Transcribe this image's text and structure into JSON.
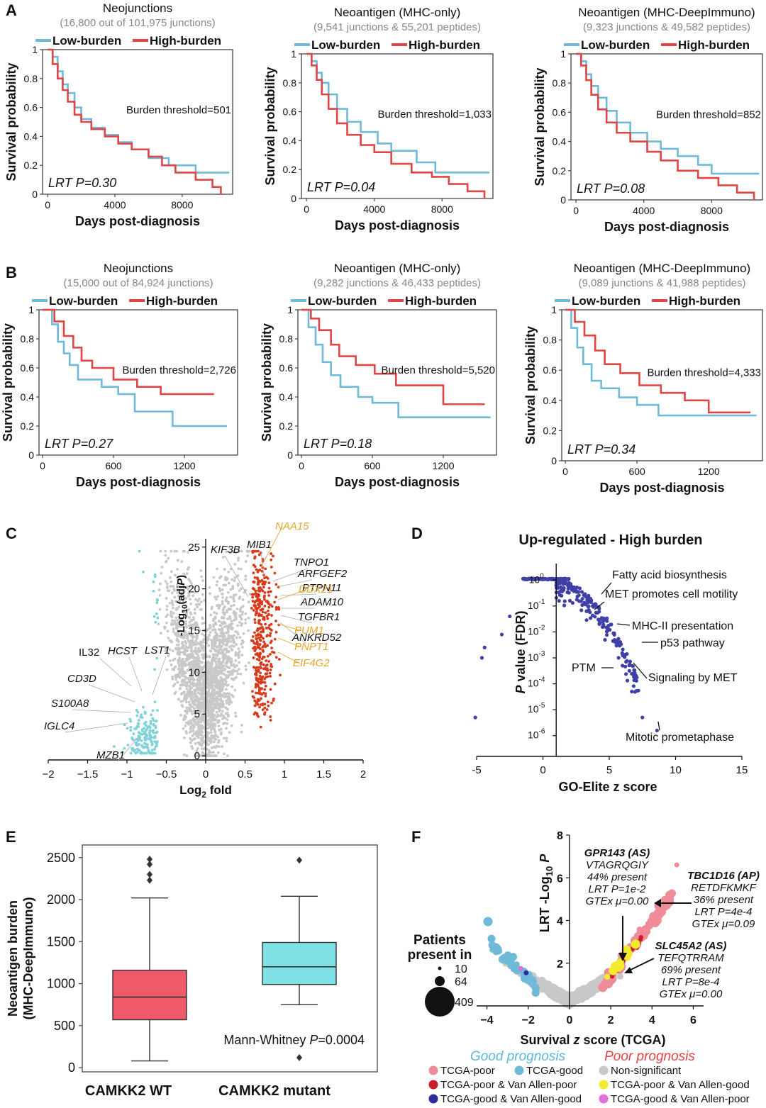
{
  "colors": {
    "low": "#6fbad8",
    "high": "#e04545",
    "gray": "#c8c8c8",
    "cyan": "#7fd3d8",
    "red": "#d83a1c",
    "orange": "#e8a52c",
    "blue": "#3f3fa8",
    "box_wt": "#ef5a6a",
    "box_mut": "#7fe0e6",
    "pink": "#ee8c9a",
    "yellow": "#f2ea2c",
    "violet": "#e06fe0"
  },
  "labels": {
    "A": "A",
    "B": "B",
    "C": "C",
    "D": "D",
    "E": "E",
    "F": "F",
    "km_xlabel": "Days post-diagnosis",
    "km_ylabel": "Survival probability",
    "legend_low": "Low-burden",
    "legend_high": "High-burden"
  },
  "chart_data": [
    {
      "id": "A1",
      "type": "line",
      "title": "Neojunctions",
      "subtitle": "(16,800 out of 101,975 junctions)",
      "annotation": "Burden threshold=501",
      "pvalue": "LRT P=0.30",
      "xlim": [
        -300,
        11000
      ],
      "ylim": [
        0,
        1
      ],
      "xticks": [
        0,
        4000,
        8000
      ],
      "yticks": [
        0.0,
        0.2,
        0.4,
        0.6,
        0.8,
        1.0
      ],
      "series": [
        {
          "name": "Low-burden",
          "steps": [
            [
              0,
              1.0
            ],
            [
              300,
              0.95
            ],
            [
              600,
              0.85
            ],
            [
              900,
              0.76
            ],
            [
              1200,
              0.7
            ],
            [
              1600,
              0.6
            ],
            [
              2000,
              0.52
            ],
            [
              2600,
              0.46
            ],
            [
              3400,
              0.41
            ],
            [
              4200,
              0.36
            ],
            [
              5000,
              0.31
            ],
            [
              6000,
              0.25
            ],
            [
              7200,
              0.2
            ],
            [
              8000,
              0.2
            ],
            [
              8800,
              0.15
            ],
            [
              10800,
              0.15
            ]
          ]
        },
        {
          "name": "High-burden",
          "steps": [
            [
              0,
              1.0
            ],
            [
              300,
              0.9
            ],
            [
              600,
              0.8
            ],
            [
              900,
              0.72
            ],
            [
              1200,
              0.64
            ],
            [
              1600,
              0.55
            ],
            [
              2000,
              0.5
            ],
            [
              2600,
              0.45
            ],
            [
              3400,
              0.4
            ],
            [
              4200,
              0.35
            ],
            [
              5000,
              0.31
            ],
            [
              6000,
              0.26
            ],
            [
              6800,
              0.2
            ],
            [
              7600,
              0.15
            ],
            [
              8800,
              0.1
            ],
            [
              9800,
              0.05
            ],
            [
              10300,
              0.0
            ]
          ]
        }
      ]
    },
    {
      "id": "A2",
      "type": "line",
      "title": "Neoantigen (MHC-only)",
      "subtitle": "(9,541 junctions & 55,201 peptides)",
      "annotation": "Burden threshold=1,033",
      "pvalue": "LRT P=0.04",
      "xlim": [
        -300,
        11000
      ],
      "ylim": [
        0,
        1
      ],
      "xticks": [
        0,
        4000,
        8000
      ],
      "yticks": [
        0.0,
        0.2,
        0.4,
        0.6,
        0.8,
        1.0
      ],
      "series": [
        {
          "name": "Low-burden",
          "steps": [
            [
              0,
              1.0
            ],
            [
              300,
              0.95
            ],
            [
              600,
              0.87
            ],
            [
              900,
              0.8
            ],
            [
              1300,
              0.72
            ],
            [
              1800,
              0.62
            ],
            [
              2400,
              0.53
            ],
            [
              3200,
              0.46
            ],
            [
              4200,
              0.38
            ],
            [
              5000,
              0.33
            ],
            [
              6500,
              0.25
            ],
            [
              7600,
              0.18
            ],
            [
              10800,
              0.18
            ]
          ]
        },
        {
          "name": "High-burden",
          "steps": [
            [
              0,
              1.0
            ],
            [
              300,
              0.92
            ],
            [
              600,
              0.82
            ],
            [
              900,
              0.72
            ],
            [
              1300,
              0.62
            ],
            [
              1800,
              0.52
            ],
            [
              2400,
              0.44
            ],
            [
              3200,
              0.37
            ],
            [
              4000,
              0.32
            ],
            [
              5000,
              0.24
            ],
            [
              6200,
              0.18
            ],
            [
              7400,
              0.15
            ],
            [
              8400,
              0.1
            ],
            [
              9500,
              0.05
            ],
            [
              10500,
              0.0
            ]
          ]
        }
      ]
    },
    {
      "id": "A3",
      "type": "line",
      "title": "Neoantigen (MHC-DeepImmuno)",
      "subtitle": "(9,323 junctions & 49,582 peptides)",
      "annotation": "Burden threshold=852",
      "pvalue": "LRT P=0.08",
      "xlim": [
        -300,
        11000
      ],
      "ylim": [
        0,
        1
      ],
      "xticks": [
        0,
        4000,
        8000
      ],
      "yticks": [
        0.0,
        0.2,
        0.4,
        0.6,
        0.8,
        1.0
      ],
      "series": [
        {
          "name": "Low-burden",
          "steps": [
            [
              0,
              1.0
            ],
            [
              300,
              0.95
            ],
            [
              600,
              0.86
            ],
            [
              900,
              0.78
            ],
            [
              1300,
              0.7
            ],
            [
              1800,
              0.61
            ],
            [
              2400,
              0.53
            ],
            [
              3200,
              0.46
            ],
            [
              4200,
              0.4
            ],
            [
              5000,
              0.35
            ],
            [
              6000,
              0.3
            ],
            [
              7200,
              0.24
            ],
            [
              8000,
              0.18
            ],
            [
              10800,
              0.18
            ]
          ]
        },
        {
          "name": "High-burden",
          "steps": [
            [
              0,
              1.0
            ],
            [
              300,
              0.92
            ],
            [
              600,
              0.82
            ],
            [
              900,
              0.72
            ],
            [
              1300,
              0.62
            ],
            [
              1800,
              0.53
            ],
            [
              2400,
              0.46
            ],
            [
              3200,
              0.4
            ],
            [
              4200,
              0.33
            ],
            [
              5000,
              0.27
            ],
            [
              6000,
              0.2
            ],
            [
              7200,
              0.15
            ],
            [
              8400,
              0.1
            ],
            [
              9500,
              0.05
            ],
            [
              10500,
              0.0
            ]
          ]
        }
      ]
    },
    {
      "id": "B1",
      "type": "line",
      "title": "Neojunctions",
      "subtitle": "(15,000 out of 84,924 junctions)",
      "annotation": "Burden threshold=2,726",
      "pvalue": "LRT P=0.27",
      "xlim": [
        -30,
        1650
      ],
      "ylim": [
        0,
        1
      ],
      "xticks": [
        0,
        600,
        1200
      ],
      "yticks": [
        0.0,
        0.2,
        0.4,
        0.6,
        0.8,
        1.0
      ],
      "series": [
        {
          "name": "Low-burden",
          "steps": [
            [
              0,
              1.0
            ],
            [
              80,
              0.9
            ],
            [
              130,
              0.78
            ],
            [
              180,
              0.7
            ],
            [
              230,
              0.62
            ],
            [
              300,
              0.52
            ],
            [
              500,
              0.47
            ],
            [
              640,
              0.42
            ],
            [
              780,
              0.3
            ],
            [
              1100,
              0.2
            ],
            [
              1560,
              0.2
            ]
          ]
        },
        {
          "name": "High-burden",
          "steps": [
            [
              0,
              1.0
            ],
            [
              100,
              0.92
            ],
            [
              180,
              0.82
            ],
            [
              260,
              0.74
            ],
            [
              330,
              0.65
            ],
            [
              420,
              0.6
            ],
            [
              600,
              0.52
            ],
            [
              800,
              0.47
            ],
            [
              1000,
              0.42
            ],
            [
              1450,
              0.42
            ]
          ]
        }
      ]
    },
    {
      "id": "B2",
      "type": "line",
      "title": "Neoantigen (MHC-only)",
      "subtitle": "(9,282 junctions & 46,433 peptides)",
      "annotation": "Burden threshold=5,520",
      "pvalue": "LRT P=0.18",
      "xlim": [
        -30,
        1650
      ],
      "ylim": [
        0,
        1
      ],
      "xticks": [
        0,
        600,
        1200
      ],
      "yticks": [
        0.0,
        0.2,
        0.4,
        0.6,
        0.8,
        1.0
      ],
      "series": [
        {
          "name": "Low-burden",
          "steps": [
            [
              0,
              1.0
            ],
            [
              60,
              0.88
            ],
            [
              120,
              0.76
            ],
            [
              180,
              0.64
            ],
            [
              250,
              0.55
            ],
            [
              330,
              0.47
            ],
            [
              480,
              0.4
            ],
            [
              600,
              0.36
            ],
            [
              820,
              0.26
            ],
            [
              1600,
              0.26
            ]
          ]
        },
        {
          "name": "High-burden",
          "steps": [
            [
              0,
              1.0
            ],
            [
              80,
              0.94
            ],
            [
              150,
              0.86
            ],
            [
              250,
              0.76
            ],
            [
              320,
              0.68
            ],
            [
              460,
              0.62
            ],
            [
              620,
              0.56
            ],
            [
              800,
              0.48
            ],
            [
              1200,
              0.35
            ],
            [
              1550,
              0.35
            ]
          ]
        }
      ]
    },
    {
      "id": "B3",
      "type": "line",
      "title": "Neoantigen (MHC-DeepImmuno)",
      "subtitle": "(9,089 junctions & 41,988 peptides)",
      "annotation": "Burden threshold=4,333",
      "pvalue": "LRT P=0.34",
      "xlim": [
        -30,
        1650
      ],
      "ylim": [
        0,
        1
      ],
      "xticks": [
        0,
        600,
        1200
      ],
      "yticks": [
        0.0,
        0.2,
        0.4,
        0.6,
        0.8,
        1.0
      ],
      "series": [
        {
          "name": "Low-burden",
          "steps": [
            [
              0,
              1.0
            ],
            [
              50,
              0.88
            ],
            [
              100,
              0.75
            ],
            [
              150,
              0.64
            ],
            [
              220,
              0.53
            ],
            [
              300,
              0.48
            ],
            [
              450,
              0.42
            ],
            [
              600,
              0.37
            ],
            [
              780,
              0.3
            ],
            [
              1600,
              0.3
            ]
          ]
        },
        {
          "name": "High-burden",
          "steps": [
            [
              0,
              1.0
            ],
            [
              80,
              0.92
            ],
            [
              160,
              0.83
            ],
            [
              250,
              0.73
            ],
            [
              330,
              0.64
            ],
            [
              460,
              0.58
            ],
            [
              620,
              0.5
            ],
            [
              800,
              0.45
            ],
            [
              1000,
              0.4
            ],
            [
              1200,
              0.32
            ],
            [
              1550,
              0.32
            ]
          ]
        }
      ]
    },
    {
      "id": "C",
      "type": "scatter",
      "title": "",
      "xlabel": "Log2 fold",
      "ylabel": "-Log10(adjP)",
      "xlim": [
        -2.0,
        2.0
      ],
      "ylim": [
        -0.5,
        26
      ],
      "xticks": [
        -2.0,
        -1.5,
        -1.0,
        -0.5,
        0.0,
        0.5,
        1.0,
        1.5,
        2.0
      ],
      "yticks": [
        0,
        5,
        10,
        15,
        20,
        25
      ],
      "gene_labels_black": [
        "KIF3B",
        "MIB1",
        "TNPO1",
        "ARFGEF2",
        "PTPN11",
        "ADAM10",
        "TGFBR1",
        "ANKRD52",
        "IL32",
        "HCST",
        "LST1",
        "CD3D",
        "S100A8",
        "IGLC4",
        "MZB1"
      ],
      "gene_labels_orange": [
        "NAA15",
        "DDX21",
        "PUM1",
        "PNPT1",
        "EIF4G2"
      ]
    },
    {
      "id": "D",
      "type": "scatter",
      "title": "Up-regulated - High burden",
      "xlabel": "GO-Elite z score",
      "ylabel": "P value (FDR)",
      "xlim": [
        -5,
        15
      ],
      "ylim": [
        -6.8,
        0.5
      ],
      "xticks": [
        -5,
        0,
        5,
        10,
        15
      ],
      "yticks": [
        "10^0",
        "10^-1",
        "10^-2",
        "10^-3",
        "10^-4",
        "10^-5",
        "10^-6"
      ],
      "annotations": [
        "Fatty acid biosynthesis",
        "MET promotes cell motility",
        "MHC-II presentation",
        "p53 pathway",
        "PTM",
        "Signaling by MET",
        "Mitotic prometaphase"
      ]
    },
    {
      "id": "E",
      "type": "box",
      "xlabel": "",
      "ylabel": "Neoantigen burden (MHC-DeepImmuno)",
      "ylim": [
        -50,
        2650
      ],
      "yticks": [
        0,
        500,
        1000,
        1500,
        2000,
        2500
      ],
      "categories": [
        "CAMKK2 WT",
        "CAMKK2 mutant"
      ],
      "boxes": [
        {
          "name": "CAMKK2 WT",
          "q1": 570,
          "median": 840,
          "q3": 1160,
          "whisker_low": 80,
          "whisker_high": 2020,
          "outliers": [
            2230,
            2300,
            2420,
            2480
          ]
        },
        {
          "name": "CAMKK2 mutant",
          "q1": 990,
          "median": 1200,
          "q3": 1490,
          "whisker_low": 750,
          "whisker_high": 2040,
          "outliers": [
            2470,
            120
          ]
        }
      ],
      "annotation": "Mann-Whitney P=0.0004"
    },
    {
      "id": "F",
      "type": "scatter",
      "xlabel": "Survival z score (TCGA)",
      "ylabel": "LRT -Log10 P",
      "xlim": [
        -4.5,
        6.5
      ],
      "ylim": [
        0,
        8
      ],
      "xticks": [
        -4,
        -2,
        0,
        2,
        4,
        6
      ],
      "yticks": [
        2,
        4,
        6,
        8
      ],
      "size_legend": {
        "title_line1": "Patients",
        "title_line2": "present in",
        "values": [
          10,
          64,
          409
        ]
      },
      "callouts": [
        {
          "gene": "GPR143 (AS)",
          "peptide": "VTAGRQGIY",
          "present": "44% present",
          "lrt": "LRT P=1e-2",
          "gtex": "GTEx μ=0.00"
        },
        {
          "gene": "TBC1D16 (AP)",
          "peptide": "RETDFKMKF",
          "present": "36% present",
          "lrt": "LRT P=4e-4",
          "gtex": "GTEx μ=0.09"
        },
        {
          "gene": "SLC45A2 (AS)",
          "peptide": "TEFQTRRAM",
          "present": "69% present",
          "lrt": "LRT P=8e-4",
          "gtex": "GTEx μ=0.00"
        }
      ],
      "prognosis_good": "Good prognosis",
      "prognosis_poor": "Poor prognosis",
      "legend": [
        "TCGA-poor",
        "TCGA-good",
        "Non-significant",
        "TCGA-poor & Van Allen-poor",
        "TCGA-poor & Van Allen-good",
        "TCGA-good & Van Allen-good",
        "TCGA-good & Van Allen-poor"
      ]
    }
  ]
}
